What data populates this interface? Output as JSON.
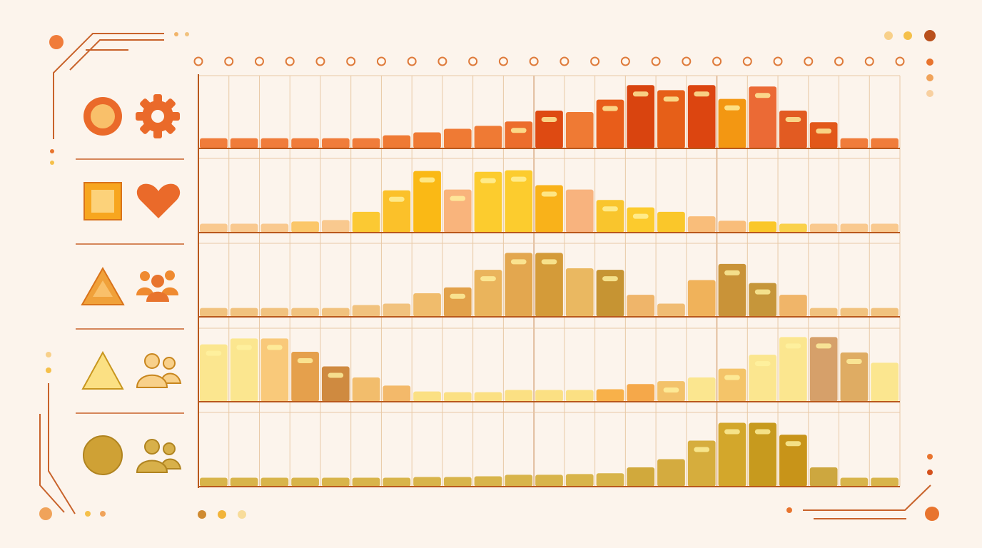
{
  "palette": {
    "background": "#fcf4ec",
    "axis": "#b9581c",
    "grid": "#e8c9a6",
    "dot_outline": "#de7a3a",
    "highlight": "#fff3a0"
  },
  "legend_rows": [
    {
      "shape_icon": "circle-ring-icon",
      "symbol_icon": "gear-icon",
      "color": "#ea6a2a"
    },
    {
      "shape_icon": "square-icon",
      "symbol_icon": "heart-icon",
      "color": "#f7a61f"
    },
    {
      "shape_icon": "triangle-icon",
      "symbol_icon": "group-icon",
      "color": "#e8832e"
    },
    {
      "shape_icon": "triangle-outline-icon",
      "symbol_icon": "people-icon",
      "color": "#f3ce62"
    },
    {
      "shape_icon": "circle-icon",
      "symbol_icon": "people-icon",
      "color": "#cfa135"
    }
  ],
  "chart_data": {
    "type": "bar",
    "layout": "small-multiples",
    "category_count": 23,
    "grid": true,
    "legend_position": "left",
    "series": [
      {
        "values": [
          14,
          14,
          14,
          14,
          14,
          14,
          18,
          22,
          27,
          31,
          37,
          52,
          50,
          67,
          87,
          80,
          87,
          68,
          85,
          52,
          36,
          14,
          14
        ],
        "colors": [
          "#f07c3a",
          "#f07c3a",
          "#f07c3a",
          "#f07c3a",
          "#f07c3a",
          "#f07c3a",
          "#ef7a34",
          "#ef7a34",
          "#ef7a34",
          "#ef7a34",
          "#ec6d2c",
          "#de4a12",
          "#ef7a34",
          "#e85d1a",
          "#d9440f",
          "#e65f18",
          "#dc4510",
          "#f39712",
          "#eb6a35",
          "#e25b22",
          "#e2581a",
          "#f07c3a",
          "#f07c3a"
        ],
        "highlight": [
          false,
          false,
          false,
          false,
          false,
          false,
          false,
          false,
          false,
          false,
          true,
          true,
          false,
          true,
          true,
          true,
          true,
          true,
          true,
          true,
          true,
          false,
          false
        ]
      },
      {
        "values": [
          12,
          12,
          12,
          15,
          17,
          28,
          57,
          83,
          58,
          82,
          84,
          64,
          58,
          44,
          34,
          28,
          22,
          16,
          15,
          12,
          12,
          12,
          12
        ],
        "colors": [
          "#f9c98f",
          "#f9c98f",
          "#f9c98f",
          "#fbc76a",
          "#f9c98f",
          "#fbc933",
          "#fbc12a",
          "#fab915",
          "#f9b47c",
          "#fccc2e",
          "#fccc2e",
          "#f9b21a",
          "#f8b37e",
          "#f9c52d",
          "#fccb2d",
          "#fac72a",
          "#f9bd7a",
          "#f9bd7a",
          "#fac72a",
          "#fad14a",
          "#f9c98f",
          "#f9c98f",
          "#f9c98f"
        ],
        "highlight": [
          false,
          false,
          false,
          false,
          false,
          false,
          true,
          true,
          true,
          true,
          true,
          true,
          false,
          true,
          true,
          false,
          false,
          true,
          false,
          false,
          false,
          false,
          false
        ]
      },
      {
        "values": [
          12,
          12,
          12,
          12,
          12,
          16,
          18,
          32,
          40,
          64,
          87,
          87,
          66,
          64,
          30,
          18,
          50,
          72,
          46,
          30,
          12,
          12,
          12
        ],
        "colors": [
          "#f1c27e",
          "#f1c27e",
          "#f1c27e",
          "#f1c27e",
          "#f1c27e",
          "#f1c27e",
          "#f1c27e",
          "#f0bc6c",
          "#e2a14a",
          "#eab45c",
          "#e3a74f",
          "#d49b39",
          "#eab861",
          "#c69433",
          "#efb56a",
          "#f0bc73",
          "#f0b25a",
          "#c99338",
          "#c6963a",
          "#f0b569",
          "#f1c27e",
          "#f1c27e",
          "#f1c27e"
        ],
        "highlight": [
          false,
          false,
          false,
          false,
          false,
          false,
          false,
          false,
          true,
          true,
          true,
          true,
          false,
          true,
          false,
          false,
          false,
          true,
          true,
          false,
          false,
          false,
          false
        ]
      },
      {
        "values": [
          78,
          86,
          86,
          68,
          48,
          33,
          22,
          14,
          13,
          13,
          16,
          16,
          16,
          17,
          24,
          28,
          33,
          45,
          64,
          88,
          88,
          67,
          53
        ],
        "colors": [
          "#fbe68f",
          "#fbe68f",
          "#f9c97a",
          "#e5a04c",
          "#cf8a40",
          "#f2bd6c",
          "#f3b96a",
          "#fbe083",
          "#fbe083",
          "#fbe083",
          "#fbe083",
          "#fbe083",
          "#fbe083",
          "#f8b14a",
          "#f5a84a",
          "#f3c26a",
          "#fbe68f",
          "#f4c469",
          "#fbe68f",
          "#fbe68f",
          "#d6a06a",
          "#dfac63",
          "#fbe68f"
        ],
        "highlight": [
          true,
          true,
          true,
          true,
          true,
          false,
          false,
          false,
          false,
          false,
          false,
          false,
          false,
          false,
          false,
          true,
          false,
          true,
          true,
          true,
          true,
          true,
          false
        ]
      },
      {
        "values": [
          12,
          12,
          12,
          12,
          12,
          12,
          12,
          13,
          13,
          14,
          16,
          16,
          17,
          18,
          26,
          37,
          62,
          86,
          86,
          70,
          26,
          12,
          12
        ],
        "colors": [
          "#d8b44a",
          "#d8b44a",
          "#d8b44a",
          "#d8b44a",
          "#d8b44a",
          "#d8b44a",
          "#d8b44a",
          "#d8b44a",
          "#d8b44a",
          "#d8b44a",
          "#d8b44a",
          "#d8b44a",
          "#d8b44a",
          "#d8b44a",
          "#d1a93c",
          "#d4ab3f",
          "#d6ad3d",
          "#d3a72b",
          "#c79a1e",
          "#c89419",
          "#cda73f",
          "#d8b44a",
          "#d8b44a"
        ],
        "highlight": [
          false,
          false,
          false,
          false,
          false,
          false,
          false,
          false,
          false,
          false,
          false,
          false,
          false,
          false,
          false,
          false,
          true,
          true,
          true,
          true,
          false,
          false,
          false
        ]
      }
    ]
  }
}
